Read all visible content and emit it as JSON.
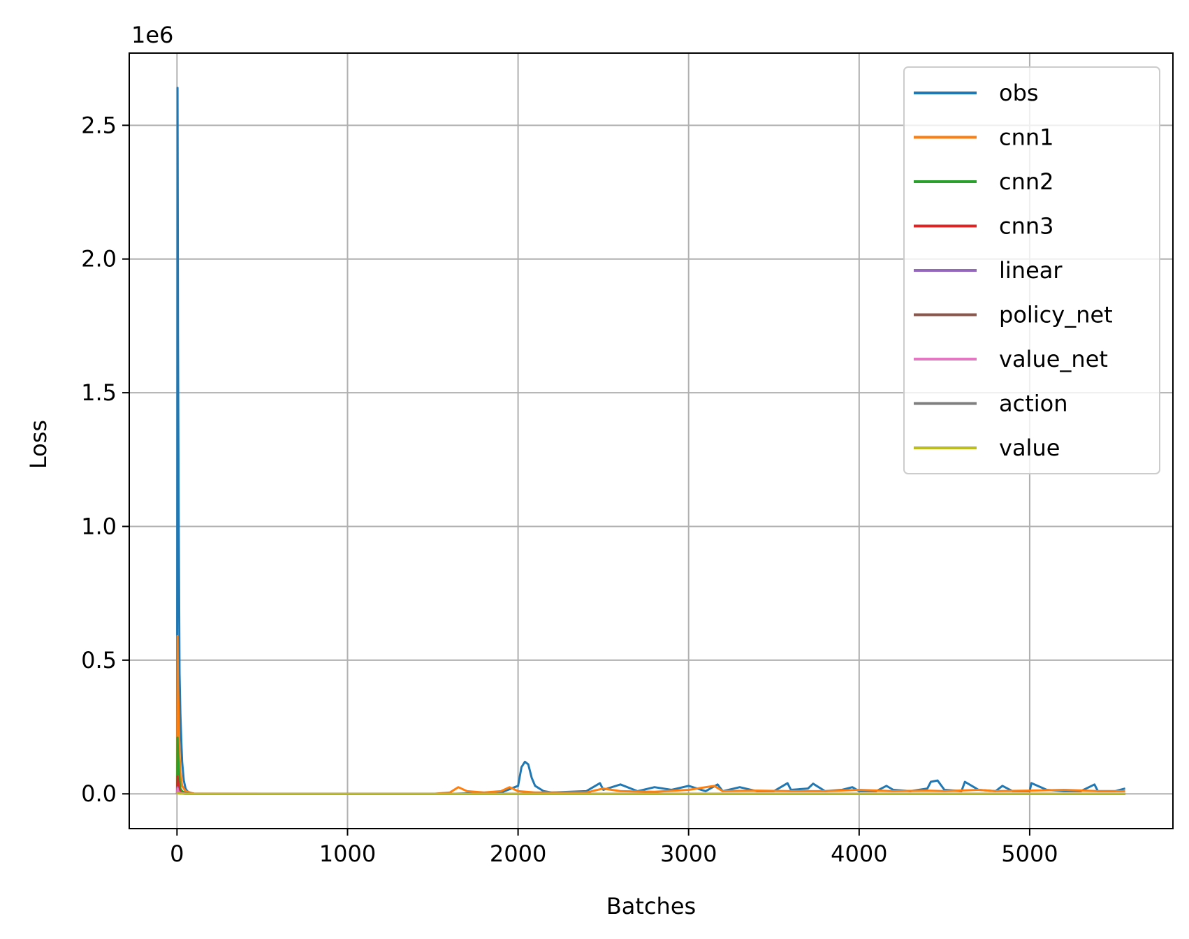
{
  "chart_data": {
    "type": "line",
    "title": "",
    "xlabel": "Batches",
    "ylabel": "Loss",
    "y_offset_label": "1e6",
    "xlim": [
      -280,
      5840
    ],
    "ylim": [
      -0.13,
      2.77
    ],
    "xticks": [
      0,
      1000,
      2000,
      3000,
      4000,
      5000
    ],
    "xtick_labels": [
      "0",
      "1000",
      "2000",
      "3000",
      "4000",
      "5000"
    ],
    "yticks": [
      0.0,
      0.5,
      1.0,
      1.5,
      2.0,
      2.5
    ],
    "ytick_labels": [
      "0.0",
      "0.5",
      "1.0",
      "1.5",
      "2.0",
      "2.5"
    ],
    "grid": true,
    "legend_position": "top-right",
    "series": [
      {
        "name": "obs",
        "color": "#1f77b4",
        "x": [
          0,
          3,
          6,
          10,
          15,
          20,
          25,
          30,
          40,
          50,
          60,
          80,
          100,
          200,
          1600,
          1700,
          1900,
          2000,
          2020,
          2040,
          2060,
          2080,
          2100,
          2150,
          2200,
          2400,
          2480,
          2500,
          2600,
          2700,
          2800,
          2900,
          3000,
          3100,
          3170,
          3200,
          3300,
          3400,
          3500,
          3580,
          3600,
          3700,
          3730,
          3800,
          3900,
          3960,
          4000,
          4100,
          4160,
          4200,
          4300,
          4400,
          4420,
          4460,
          4500,
          4600,
          4620,
          4700,
          4800,
          4840,
          4900,
          5000,
          5010,
          5100,
          5200,
          5300,
          5380,
          5400,
          5500,
          5560
        ],
        "values": [
          0.0,
          2.64,
          1.71,
          1.04,
          0.45,
          0.3,
          0.2,
          0.12,
          0.05,
          0.02,
          0.01,
          0.003,
          0.001,
          0.0,
          0.0,
          0.002,
          0.005,
          0.03,
          0.1,
          0.12,
          0.11,
          0.06,
          0.03,
          0.01,
          0.005,
          0.01,
          0.04,
          0.015,
          0.035,
          0.01,
          0.025,
          0.015,
          0.03,
          0.01,
          0.035,
          0.01,
          0.025,
          0.01,
          0.01,
          0.04,
          0.015,
          0.02,
          0.038,
          0.01,
          0.015,
          0.025,
          0.01,
          0.01,
          0.03,
          0.015,
          0.01,
          0.02,
          0.045,
          0.05,
          0.015,
          0.01,
          0.045,
          0.015,
          0.01,
          0.03,
          0.01,
          0.01,
          0.04,
          0.015,
          0.01,
          0.01,
          0.035,
          0.01,
          0.01,
          0.02
        ]
      },
      {
        "name": "cnn1",
        "color": "#ff7f0e",
        "x": [
          0,
          3,
          6,
          10,
          15,
          20,
          30,
          50,
          100,
          1500,
          1600,
          1650,
          1700,
          1800,
          1900,
          1950,
          2000,
          2100,
          2400,
          2500,
          2600,
          2800,
          3000,
          3150,
          3200,
          3400,
          3600,
          3800,
          4000,
          4200,
          4400,
          4500,
          4700,
          4800,
          5000,
          5200,
          5400,
          5560
        ],
        "values": [
          0.0,
          0.59,
          0.4,
          0.3,
          0.15,
          0.08,
          0.03,
          0.01,
          0.001,
          0.0,
          0.005,
          0.025,
          0.01,
          0.005,
          0.01,
          0.025,
          0.01,
          0.005,
          0.005,
          0.02,
          0.01,
          0.008,
          0.015,
          0.03,
          0.01,
          0.012,
          0.01,
          0.01,
          0.015,
          0.01,
          0.012,
          0.01,
          0.015,
          0.01,
          0.012,
          0.015,
          0.01,
          0.01
        ]
      },
      {
        "name": "cnn2",
        "color": "#2ca02c",
        "x": [
          0,
          3,
          6,
          10,
          15,
          20,
          30,
          50,
          100,
          5560
        ],
        "values": [
          0.0,
          0.21,
          0.15,
          0.1,
          0.05,
          0.02,
          0.01,
          0.002,
          0.0,
          0.0
        ]
      },
      {
        "name": "cnn3",
        "color": "#d62728",
        "x": [
          0,
          3,
          6,
          10,
          15,
          20,
          30,
          50,
          100,
          5560
        ],
        "values": [
          0.0,
          0.065,
          0.05,
          0.03,
          0.015,
          0.008,
          0.003,
          0.001,
          0.0,
          0.0
        ]
      },
      {
        "name": "linear",
        "color": "#9467bd",
        "x": [
          0,
          3,
          6,
          10,
          20,
          50,
          100,
          5560
        ],
        "values": [
          0.0,
          0.025,
          0.015,
          0.01,
          0.004,
          0.001,
          0.0,
          0.0
        ]
      },
      {
        "name": "policy_net",
        "color": "#8c564b",
        "x": [
          0,
          3,
          6,
          10,
          20,
          50,
          100,
          5560
        ],
        "values": [
          0.0,
          0.01,
          0.006,
          0.004,
          0.002,
          0.0,
          0.0,
          0.0
        ]
      },
      {
        "name": "value_net",
        "color": "#e377c2",
        "x": [
          0,
          3,
          6,
          10,
          20,
          50,
          100,
          5560
        ],
        "values": [
          0.0,
          0.02,
          0.01,
          0.006,
          0.003,
          0.001,
          0.0,
          0.0
        ]
      },
      {
        "name": "action",
        "color": "#7f7f7f",
        "x": [
          0,
          3,
          10,
          20,
          50,
          100,
          5560
        ],
        "values": [
          0.0,
          0.005,
          0.003,
          0.001,
          0.0,
          0.0,
          0.0
        ]
      },
      {
        "name": "value",
        "color": "#bcbd22",
        "x": [
          0,
          3,
          10,
          20,
          50,
          100,
          5560
        ],
        "values": [
          0.0,
          0.004,
          0.002,
          0.001,
          0.0,
          0.0,
          0.0
        ]
      }
    ]
  }
}
